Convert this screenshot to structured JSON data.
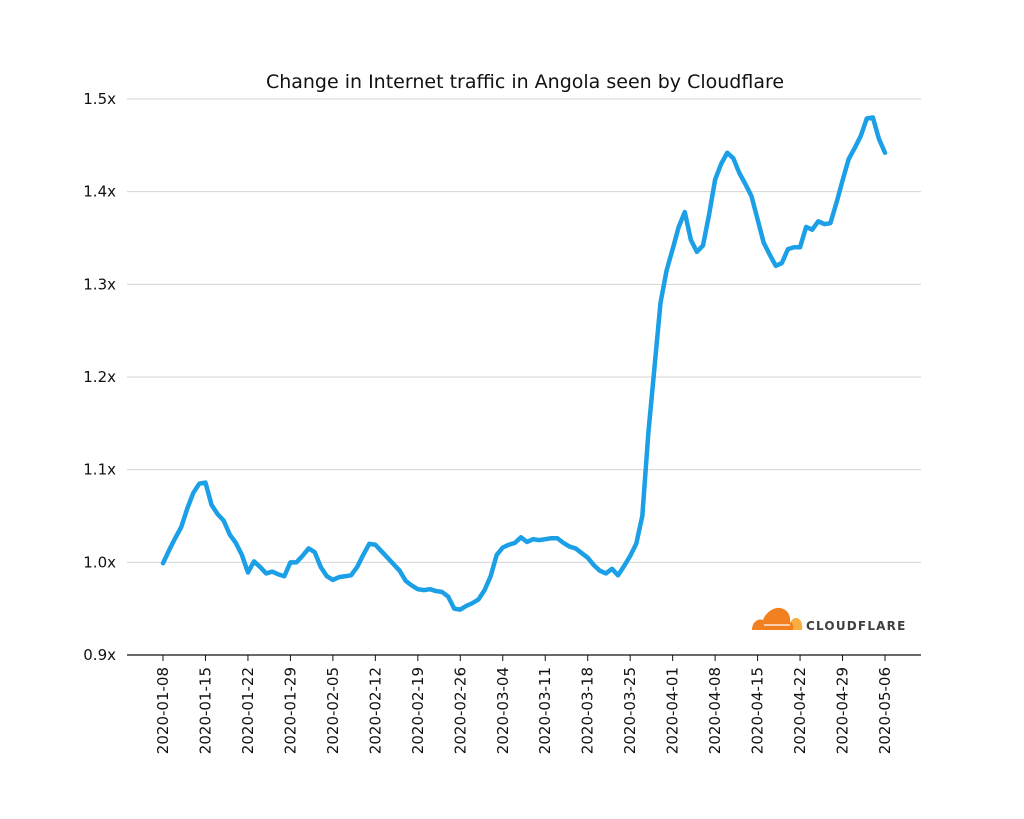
{
  "chart_data": {
    "type": "line",
    "title": "Change in Internet traffic in Angola seen by Cloudflare",
    "xlabel": "",
    "ylabel": "",
    "x_range": [
      "2020-01-08",
      "2020-05-06"
    ],
    "xticks": [
      "2020-01-08",
      "2020-01-15",
      "2020-01-22",
      "2020-01-29",
      "2020-02-05",
      "2020-02-12",
      "2020-02-19",
      "2020-02-26",
      "2020-03-04",
      "2020-03-11",
      "2020-03-18",
      "2020-03-25",
      "2020-04-01",
      "2020-04-08",
      "2020-04-15",
      "2020-04-22",
      "2020-04-29",
      "2020-05-06"
    ],
    "ylim": [
      0.9,
      1.5
    ],
    "yticks": [
      {
        "value": 0.9,
        "label": "0.9x"
      },
      {
        "value": 1.0,
        "label": "1.0x"
      },
      {
        "value": 1.1,
        "label": "1.1x"
      },
      {
        "value": 1.2,
        "label": "1.2x"
      },
      {
        "value": 1.3,
        "label": "1.3x"
      },
      {
        "value": 1.4,
        "label": "1.4x"
      },
      {
        "value": 1.5,
        "label": "1.5x"
      }
    ],
    "grid": "horizontal",
    "line_color": "#1b9fe6",
    "series": [
      {
        "values": [
          [
            "2020-01-08",
            0.999
          ],
          [
            "2020-01-09",
            1.013
          ],
          [
            "2020-01-10",
            1.026
          ],
          [
            "2020-01-11",
            1.038
          ],
          [
            "2020-01-12",
            1.058
          ],
          [
            "2020-01-13",
            1.075
          ],
          [
            "2020-01-14",
            1.085
          ],
          [
            "2020-01-15",
            1.086
          ],
          [
            "2020-01-16",
            1.062
          ],
          [
            "2020-01-17",
            1.052
          ],
          [
            "2020-01-18",
            1.045
          ],
          [
            "2020-01-19",
            1.03
          ],
          [
            "2020-01-20",
            1.021
          ],
          [
            "2020-01-21",
            1.008
          ],
          [
            "2020-01-22",
            0.989
          ],
          [
            "2020-01-23",
            1.001
          ],
          [
            "2020-01-24",
            0.995
          ],
          [
            "2020-01-25",
            0.988
          ],
          [
            "2020-01-26",
            0.99
          ],
          [
            "2020-01-27",
            0.987
          ],
          [
            "2020-01-28",
            0.985
          ],
          [
            "2020-01-29",
            1.0
          ],
          [
            "2020-01-30",
            1.0
          ],
          [
            "2020-01-31",
            1.007
          ],
          [
            "2020-02-01",
            1.015
          ],
          [
            "2020-02-02",
            1.011
          ],
          [
            "2020-02-03",
            0.995
          ],
          [
            "2020-02-04",
            0.985
          ],
          [
            "2020-02-05",
            0.981
          ],
          [
            "2020-02-06",
            0.984
          ],
          [
            "2020-02-07",
            0.985
          ],
          [
            "2020-02-08",
            0.986
          ],
          [
            "2020-02-09",
            0.995
          ],
          [
            "2020-02-10",
            1.008
          ],
          [
            "2020-02-11",
            1.02
          ],
          [
            "2020-02-12",
            1.019
          ],
          [
            "2020-02-13",
            1.012
          ],
          [
            "2020-02-14",
            1.005
          ],
          [
            "2020-02-15",
            0.998
          ],
          [
            "2020-02-16",
            0.991
          ],
          [
            "2020-02-17",
            0.98
          ],
          [
            "2020-02-18",
            0.975
          ],
          [
            "2020-02-19",
            0.971
          ],
          [
            "2020-02-20",
            0.97
          ],
          [
            "2020-02-21",
            0.971
          ],
          [
            "2020-02-22",
            0.969
          ],
          [
            "2020-02-23",
            0.968
          ],
          [
            "2020-02-24",
            0.963
          ],
          [
            "2020-02-25",
            0.95
          ],
          [
            "2020-02-26",
            0.949
          ],
          [
            "2020-02-27",
            0.953
          ],
          [
            "2020-02-28",
            0.956
          ],
          [
            "2020-02-29",
            0.96
          ],
          [
            "2020-03-01",
            0.97
          ],
          [
            "2020-03-02",
            0.985
          ],
          [
            "2020-03-03",
            1.008
          ],
          [
            "2020-03-04",
            1.016
          ],
          [
            "2020-03-05",
            1.019
          ],
          [
            "2020-03-06",
            1.021
          ],
          [
            "2020-03-07",
            1.027
          ],
          [
            "2020-03-08",
            1.022
          ],
          [
            "2020-03-09",
            1.025
          ],
          [
            "2020-03-10",
            1.024
          ],
          [
            "2020-03-11",
            1.025
          ],
          [
            "2020-03-12",
            1.026
          ],
          [
            "2020-03-13",
            1.026
          ],
          [
            "2020-03-14",
            1.021
          ],
          [
            "2020-03-15",
            1.017
          ],
          [
            "2020-03-16",
            1.015
          ],
          [
            "2020-03-17",
            1.01
          ],
          [
            "2020-03-18",
            1.005
          ],
          [
            "2020-03-19",
            0.997
          ],
          [
            "2020-03-20",
            0.991
          ],
          [
            "2020-03-21",
            0.988
          ],
          [
            "2020-03-22",
            0.993
          ],
          [
            "2020-03-23",
            0.986
          ],
          [
            "2020-03-24",
            0.996
          ],
          [
            "2020-03-25",
            1.007
          ],
          [
            "2020-03-26",
            1.02
          ],
          [
            "2020-03-27",
            1.05
          ],
          [
            "2020-03-28",
            1.14
          ],
          [
            "2020-03-29",
            1.21
          ],
          [
            "2020-03-30",
            1.28
          ],
          [
            "2020-03-31",
            1.315
          ],
          [
            "2020-04-01",
            1.338
          ],
          [
            "2020-04-02",
            1.362
          ],
          [
            "2020-04-03",
            1.378
          ],
          [
            "2020-04-04",
            1.348
          ],
          [
            "2020-04-05",
            1.335
          ],
          [
            "2020-04-06",
            1.342
          ],
          [
            "2020-04-07",
            1.375
          ],
          [
            "2020-04-08",
            1.413
          ],
          [
            "2020-04-09",
            1.43
          ],
          [
            "2020-04-10",
            1.442
          ],
          [
            "2020-04-11",
            1.436
          ],
          [
            "2020-04-12",
            1.42
          ],
          [
            "2020-04-13",
            1.408
          ],
          [
            "2020-04-14",
            1.395
          ],
          [
            "2020-04-15",
            1.37
          ],
          [
            "2020-04-16",
            1.345
          ],
          [
            "2020-04-17",
            1.332
          ],
          [
            "2020-04-18",
            1.32
          ],
          [
            "2020-04-19",
            1.323
          ],
          [
            "2020-04-20",
            1.338
          ],
          [
            "2020-04-21",
            1.34
          ],
          [
            "2020-04-22",
            1.34
          ],
          [
            "2020-04-23",
            1.362
          ],
          [
            "2020-04-24",
            1.359
          ],
          [
            "2020-04-25",
            1.368
          ],
          [
            "2020-04-26",
            1.365
          ],
          [
            "2020-04-27",
            1.366
          ],
          [
            "2020-04-28",
            1.388
          ],
          [
            "2020-04-29",
            1.412
          ],
          [
            "2020-04-30",
            1.435
          ],
          [
            "2020-05-01",
            1.447
          ],
          [
            "2020-05-02",
            1.46
          ],
          [
            "2020-05-03",
            1.479
          ],
          [
            "2020-05-04",
            1.48
          ],
          [
            "2020-05-05",
            1.457
          ],
          [
            "2020-05-06",
            1.442
          ]
        ]
      }
    ]
  },
  "logo": {
    "name": "cloudflare-logo",
    "text": "CLOUDFLARE",
    "colors": {
      "cloud_dark": "#f38020",
      "cloud_light": "#faae40",
      "text": "#404041"
    }
  }
}
